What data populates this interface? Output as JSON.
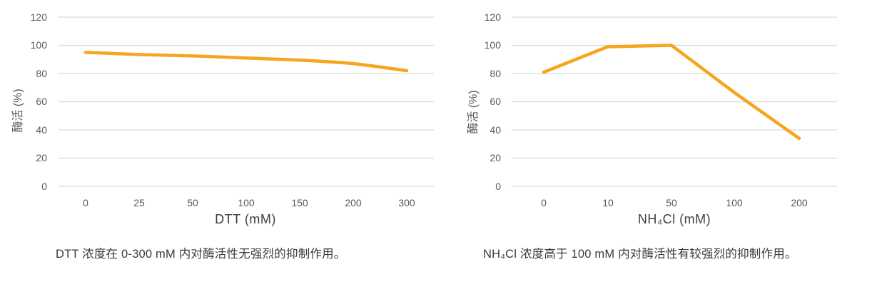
{
  "page": {
    "background": "#FFFFFF"
  },
  "colors": {
    "line": "#F6A51F",
    "grid": "#D9D9D9",
    "tick_label": "#595959",
    "axis_title": "#404040",
    "caption_text": "#3A3A3A"
  },
  "chart_data": [
    {
      "type": "line",
      "name": "dtt-effect",
      "categories": [
        "0",
        "25",
        "50",
        "100",
        "150",
        "200",
        "300"
      ],
      "values": [
        95,
        93.5,
        92.5,
        91,
        89.5,
        87,
        82
      ],
      "xlabel": "DTT (mM)",
      "ylabel": "酶活 (%)",
      "ylim": [
        0,
        120
      ],
      "y_ticks": [
        "120",
        "100",
        "80",
        "60",
        "40",
        "20",
        "0"
      ],
      "grid": "horizontal",
      "legend": "none",
      "smooth": true,
      "caption": "DTT 浓度在 0-300 mM 内对酶活性无强烈的抑制作用。"
    },
    {
      "type": "line",
      "name": "nh4cl-effect",
      "categories": [
        "0",
        "10",
        "50",
        "100",
        "200"
      ],
      "values": [
        81,
        99,
        100,
        66,
        34
      ],
      "xlabel": "NH₄Cl (mM)",
      "ylabel": "酶活 (%)",
      "ylim": [
        0,
        120
      ],
      "y_ticks": [
        "120",
        "100",
        "80",
        "60",
        "40",
        "20",
        "0"
      ],
      "grid": "horizontal",
      "legend": "none",
      "smooth": false,
      "caption": "NH₄Cl 浓度高于 100 mM 内对酶活性有较强烈的抑制作用。"
    }
  ]
}
